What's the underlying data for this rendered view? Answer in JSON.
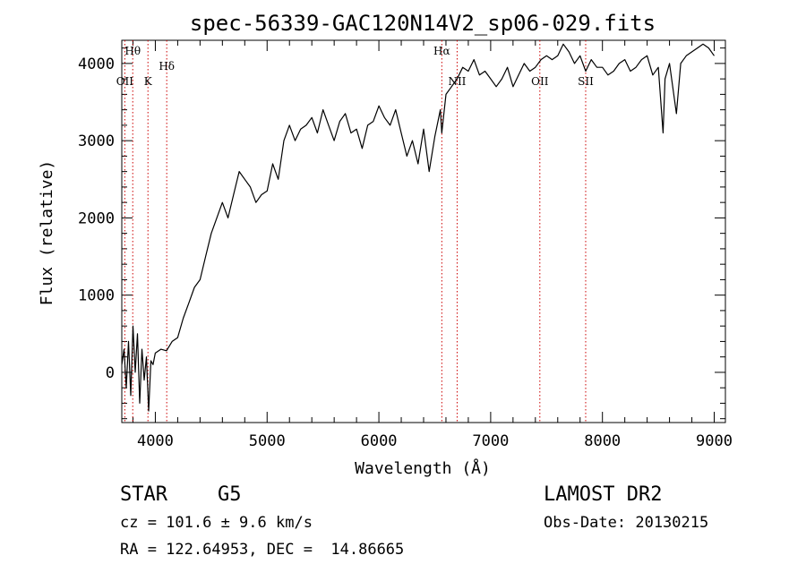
{
  "chart_data": {
    "type": "line",
    "title": "spec-56339-GAC120N14V2_sp06-029.fits",
    "xlabel": "Wavelength (Å)",
    "ylabel": "Flux (relative)",
    "xlim": [
      3700,
      9100
    ],
    "ylim": [
      -650,
      4300
    ],
    "x_ticks": [
      4000,
      5000,
      6000,
      7000,
      8000,
      9000
    ],
    "y_ticks": [
      0,
      1000,
      2000,
      3000,
      4000
    ],
    "x_tick_labels": [
      "4000",
      "5000",
      "6000",
      "7000",
      "8000",
      "9000"
    ],
    "y_tick_labels": [
      "0",
      "1000",
      "2000",
      "3000",
      "4000"
    ],
    "grid": false,
    "line_color": "#000000",
    "marker_color": "#cc0000",
    "series": [
      {
        "x": [
          3700,
          3720,
          3740,
          3760,
          3780,
          3800,
          3820,
          3840,
          3860,
          3880,
          3900,
          3920,
          3940,
          3960,
          3980,
          4000,
          4050,
          4100,
          4150,
          4200,
          4250,
          4300,
          4350,
          4400,
          4450,
          4500,
          4550,
          4600,
          4650,
          4700,
          4750,
          4800,
          4850,
          4900,
          4950,
          5000,
          5050,
          5100,
          5150,
          5200,
          5250,
          5300,
          5350,
          5400,
          5450,
          5500,
          5550,
          5600,
          5650,
          5700,
          5750,
          5800,
          5850,
          5900,
          5950,
          6000,
          6050,
          6100,
          6150,
          6200,
          6250,
          6300,
          6350,
          6400,
          6450,
          6500,
          6550,
          6563,
          6600,
          6650,
          6700,
          6750,
          6800,
          6850,
          6900,
          6950,
          7000,
          7050,
          7100,
          7150,
          7200,
          7250,
          7300,
          7350,
          7400,
          7450,
          7500,
          7550,
          7600,
          7650,
          7700,
          7750,
          7800,
          7850,
          7900,
          7950,
          8000,
          8050,
          8100,
          8150,
          8200,
          8250,
          8300,
          8350,
          8400,
          8450,
          8500,
          8542,
          8560,
          8600,
          8662,
          8700,
          8750,
          8800,
          8850,
          8900,
          8950,
          9000
        ],
        "y": [
          100,
          300,
          -200,
          400,
          -300,
          600,
          0,
          500,
          -400,
          300,
          -100,
          200,
          -500,
          150,
          100,
          250,
          300,
          280,
          400,
          450,
          700,
          900,
          1100,
          1200,
          1500,
          1800,
          2000,
          2200,
          2000,
          2300,
          2600,
          2500,
          2400,
          2200,
          2300,
          2350,
          2700,
          2500,
          3000,
          3200,
          3000,
          3150,
          3200,
          3300,
          3100,
          3400,
          3200,
          3000,
          3250,
          3350,
          3100,
          3150,
          2900,
          3200,
          3250,
          3450,
          3300,
          3200,
          3400,
          3100,
          2800,
          3000,
          2700,
          3150,
          2600,
          3050,
          3400,
          3100,
          3600,
          3700,
          3800,
          3950,
          3900,
          4050,
          3850,
          3900,
          3800,
          3700,
          3800,
          3950,
          3700,
          3850,
          4000,
          3900,
          3950,
          4050,
          4100,
          4050,
          4100,
          4250,
          4150,
          4000,
          4100,
          3900,
          4050,
          3950,
          3950,
          3850,
          3900,
          4000,
          4050,
          3900,
          3950,
          4050,
          4100,
          3850,
          3950,
          3100,
          3800,
          4000,
          3350,
          4000,
          4100,
          4150,
          4200,
          4250,
          4200,
          4100
        ]
      }
    ],
    "lines": [
      {
        "label": "Hθ",
        "x": 3798,
        "label_row": "top"
      },
      {
        "label": "OII",
        "x": 3727,
        "label_row": "lower"
      },
      {
        "label": "K",
        "x": 3934,
        "label_row": "lower"
      },
      {
        "label": "Hδ",
        "x": 4102,
        "label_row": "middle"
      },
      {
        "label": "Hα",
        "x": 6563,
        "label_row": "top"
      },
      {
        "label": "NII",
        "x": 6700,
        "label_row": "lower"
      },
      {
        "label": "OII",
        "x": 7440,
        "label_row": "lower"
      },
      {
        "label": "SII",
        "x": 7850,
        "label_row": "lower"
      }
    ]
  },
  "info": {
    "class": "STAR",
    "subclass": "G5",
    "survey": "LAMOST DR2",
    "redshift": "cz = 101.6 ± 9.6 km/s",
    "obs_date": "Obs-Date: 20130215",
    "coords": "RA = 122.64953, DEC =  14.86665"
  }
}
